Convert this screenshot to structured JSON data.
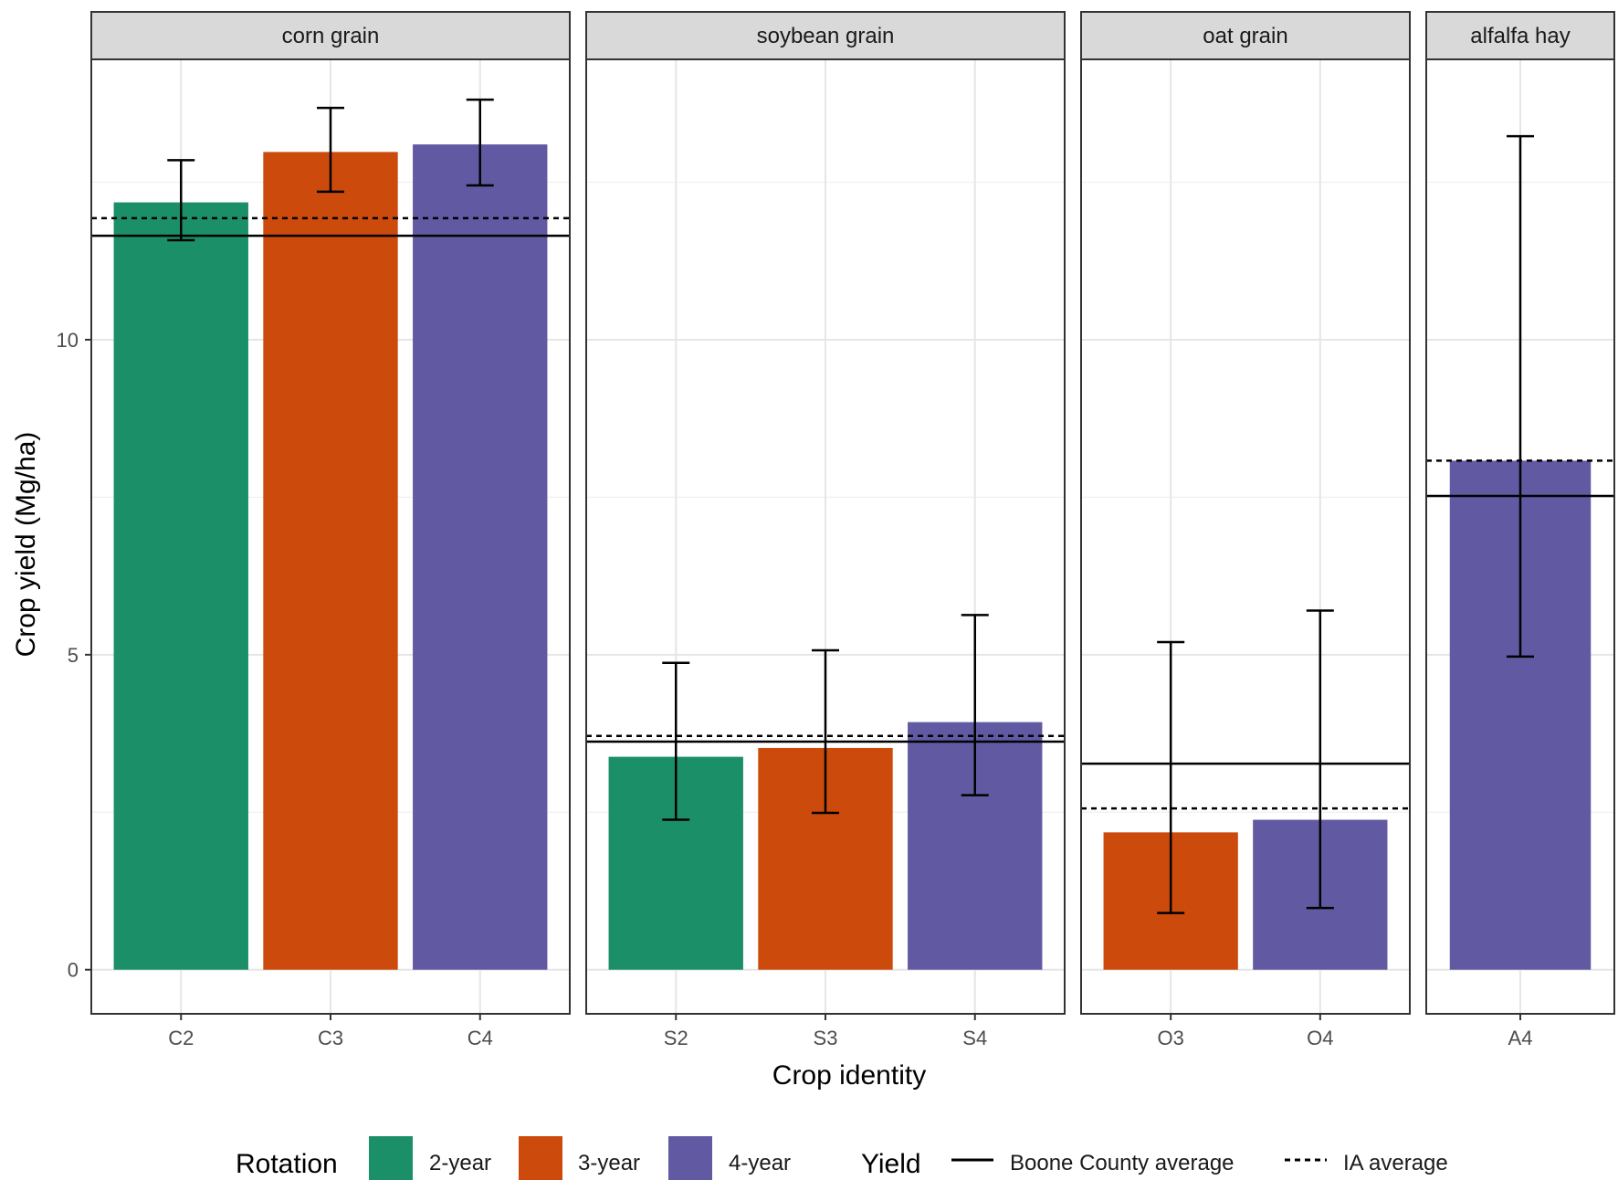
{
  "chart_data": {
    "type": "bar",
    "xlabel": "Crop identity",
    "ylabel": "Crop yield (Mg/ha)",
    "ylim": [
      -0.7,
      14.45
    ],
    "y_ticks": [
      0,
      5,
      10
    ],
    "y_tick_labels": [
      "0",
      "5",
      "10"
    ],
    "grid": true,
    "colors": {
      "2-year": "#1b9068",
      "3-year": "#cc4a0c",
      "4-year": "#615aa3"
    },
    "facets": [
      {
        "name": "corn grain",
        "bars": [
          {
            "category": "C2",
            "rotation": "2-year",
            "value": 12.18,
            "err_low": 11.58,
            "err_high": 12.85
          },
          {
            "category": "C3",
            "rotation": "3-year",
            "value": 12.98,
            "err_low": 12.35,
            "err_high": 13.68
          },
          {
            "category": "C4",
            "rotation": "4-year",
            "value": 13.1,
            "err_low": 12.45,
            "err_high": 13.81
          }
        ],
        "boone_county_average": 11.65,
        "ia_average": 11.93
      },
      {
        "name": "soybean grain",
        "bars": [
          {
            "category": "S2",
            "rotation": "2-year",
            "value": 3.38,
            "err_low": 2.38,
            "err_high": 4.87
          },
          {
            "category": "S3",
            "rotation": "3-year",
            "value": 3.52,
            "err_low": 2.49,
            "err_high": 5.07
          },
          {
            "category": "S4",
            "rotation": "4-year",
            "value": 3.93,
            "err_low": 2.77,
            "err_high": 5.63
          }
        ],
        "boone_county_average": 3.62,
        "ia_average": 3.71
      },
      {
        "name": "oat grain",
        "bars": [
          {
            "category": "O3",
            "rotation": "3-year",
            "value": 2.18,
            "err_low": 0.9,
            "err_high": 5.2
          },
          {
            "category": "O4",
            "rotation": "4-year",
            "value": 2.38,
            "err_low": 0.98,
            "err_high": 5.7
          }
        ],
        "boone_county_average": 3.27,
        "ia_average": 2.56
      },
      {
        "name": "alfalfa hay",
        "bars": [
          {
            "category": "A4",
            "rotation": "4-year",
            "value": 8.08,
            "err_low": 4.97,
            "err_high": 13.23
          }
        ],
        "boone_county_average": 7.52,
        "ia_average": 8.08
      }
    ],
    "legend": {
      "position": "bottom",
      "rotation_title": "Rotation",
      "rotation_items": [
        "2-year",
        "3-year",
        "4-year"
      ],
      "yield_title": "Yield",
      "yield_items": [
        {
          "label": "Boone County average",
          "linetype": "solid"
        },
        {
          "label": "IA average",
          "linetype": "dashed"
        }
      ]
    }
  }
}
